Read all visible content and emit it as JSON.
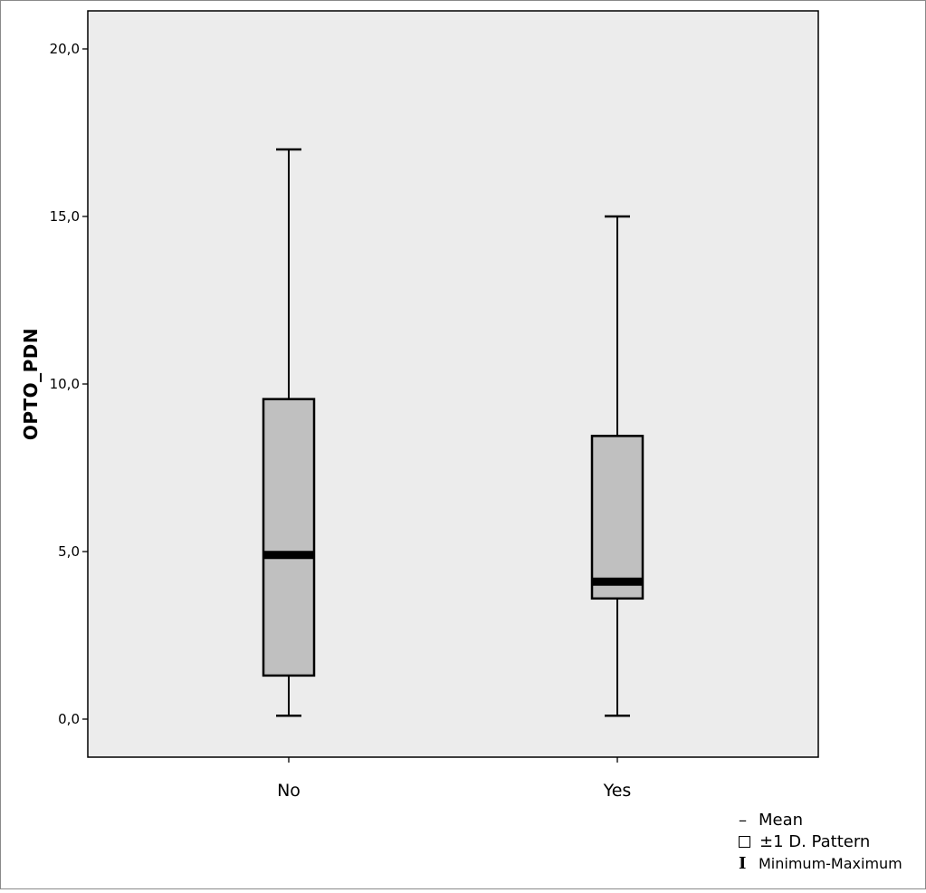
{
  "chart_data": {
    "type": "boxplot",
    "ylabel": "OPTO_PDN",
    "xlabel": "",
    "ylim": [
      -1.1,
      21.1
    ],
    "yticks": [
      0,
      5,
      10,
      15,
      20
    ],
    "ytick_labels": [
      "0,0",
      "5,0",
      "10,0",
      "15,0",
      "20,0"
    ],
    "categories": [
      "No",
      "Yes"
    ],
    "boxes": [
      {
        "category": "No",
        "min": 0.1,
        "lower": 1.3,
        "mean": 4.9,
        "upper": 9.55,
        "max": 17.0
      },
      {
        "category": "Yes",
        "min": 0.1,
        "lower": 3.6,
        "mean": 4.1,
        "upper": 8.45,
        "max": 15.0
      }
    ],
    "legend": {
      "mean": "Mean",
      "std": "±1 D. Pattern",
      "range": "Minimum-Maximum"
    },
    "colors": {
      "plot_bg": "#ececec",
      "box_fill": "#c0c0c0",
      "line": "#000000"
    }
  }
}
